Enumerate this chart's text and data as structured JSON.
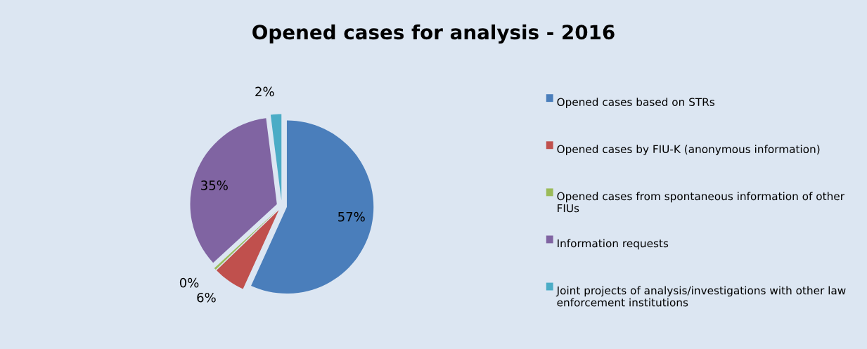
{
  "chart_data": {
    "type": "pie",
    "title": "Opened cases for analysis - 2016",
    "categories": [
      "Opened cases based on STRs",
      "Opened cases by FIU-K (anonymous information)",
      "Opened cases from spontaneous information of other FIUs",
      "Information requests",
      "Joint projects of analysis/investigations with other law enforcement institutions"
    ],
    "values": [
      57,
      6,
      0.4,
      35,
      2
    ],
    "colors": [
      "#4a7ebb",
      "#c0504d",
      "#9bbb59",
      "#8064a2",
      "#4bacc6"
    ],
    "value_labels": [
      "57%",
      "6%",
      "0%",
      "35%",
      "2%"
    ],
    "legend": "right"
  }
}
